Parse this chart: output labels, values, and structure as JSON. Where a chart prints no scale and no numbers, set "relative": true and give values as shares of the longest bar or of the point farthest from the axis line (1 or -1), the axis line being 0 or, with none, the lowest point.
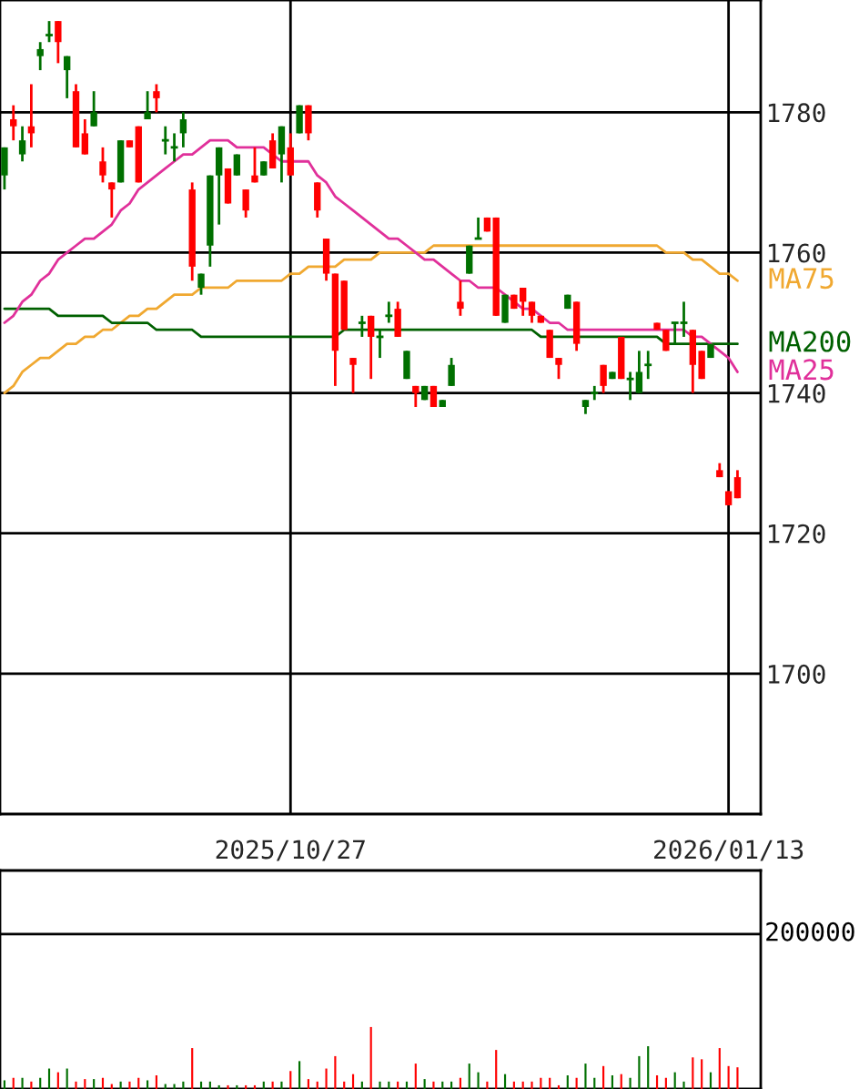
{
  "chart_data": [
    {
      "type": "candlestick",
      "categories": [
        null,
        null,
        null,
        null,
        null,
        null,
        null,
        null,
        null,
        null,
        null,
        null,
        null,
        null,
        null,
        null,
        null,
        null,
        null,
        null,
        null,
        null,
        null,
        null,
        null,
        null,
        null,
        null,
        null,
        null,
        null,
        null,
        "2025/10/27",
        null,
        null,
        null,
        null,
        null,
        null,
        null,
        null,
        null,
        null,
        null,
        null,
        null,
        null,
        null,
        null,
        null,
        null,
        null,
        null,
        null,
        null,
        null,
        null,
        null,
        null,
        null,
        null,
        null,
        null,
        null,
        null,
        null,
        null,
        null,
        null,
        null,
        null,
        null,
        null,
        null,
        null,
        null,
        null,
        null,
        null,
        null,
        null,
        "2026/01/13",
        null
      ],
      "ohlc": [
        [
          1775,
          1775,
          1769,
          1771
        ],
        [
          1778,
          1781,
          1776,
          1779
        ],
        [
          1776,
          1778,
          1773,
          1774
        ],
        [
          1777,
          1784,
          1775,
          1778
        ],
        [
          1789,
          1790,
          1786,
          1788
        ],
        [
          1791,
          1793,
          1790,
          1791
        ],
        [
          1790,
          1793,
          1787,
          1793
        ],
        [
          1788,
          1788,
          1782,
          1786
        ],
        [
          1775,
          1784,
          1775,
          1783
        ],
        [
          1774,
          1779,
          1774,
          1777
        ],
        [
          1780,
          1783,
          1778,
          1778
        ],
        [
          1771,
          1775,
          1770,
          1773
        ],
        [
          1769,
          1770,
          1765,
          1770
        ],
        [
          1776,
          1776,
          1770,
          1770
        ],
        [
          1775,
          1776,
          1775,
          1776
        ],
        [
          1770,
          1778,
          1770,
          1778
        ],
        [
          1780,
          1783,
          1779,
          1779
        ],
        [
          1782,
          1784,
          1780,
          1783
        ],
        [
          1776,
          1778,
          1774,
          1776
        ],
        [
          1775,
          1777,
          1773,
          1775
        ],
        [
          1779,
          1780,
          1775,
          1777
        ],
        [
          1758,
          1770,
          1756,
          1769
        ],
        [
          1757,
          1757,
          1754,
          1755
        ],
        [
          1771,
          1771,
          1758,
          1761
        ],
        [
          1775,
          1775,
          1764,
          1771
        ],
        [
          1767,
          1772,
          1767,
          1772
        ],
        [
          1774,
          1774,
          1771,
          1771
        ],
        [
          1766,
          1769,
          1765,
          1769
        ],
        [
          1770,
          1775,
          1770,
          1771
        ],
        [
          1773,
          1773,
          1771,
          1771
        ],
        [
          1772,
          1777,
          1772,
          1776
        ],
        [
          1778,
          1778,
          1770,
          1774
        ],
        [
          1771,
          1777,
          1771,
          1775
        ],
        [
          1781,
          1781,
          1777,
          1777
        ],
        [
          1777,
          1781,
          1776,
          1781
        ],
        [
          1766,
          1770,
          1765,
          1770
        ],
        [
          1757,
          1762,
          1756,
          1762
        ],
        [
          1746,
          1757,
          1741,
          1757
        ],
        [
          1749,
          1756,
          1749,
          1756
        ],
        [
          1744,
          1745,
          1740,
          1745
        ],
        [
          1750,
          1751,
          1748,
          1750
        ],
        [
          1748,
          1751,
          1742,
          1751
        ],
        [
          1748,
          1749,
          1745,
          1748
        ],
        [
          1751,
          1753,
          1750,
          1751
        ],
        [
          1748,
          1753,
          1748,
          1752
        ],
        [
          1746,
          1746,
          1742,
          1742
        ],
        [
          1740,
          1741,
          1738,
          1741
        ],
        [
          1741,
          1741,
          1739,
          1739
        ],
        [
          1738,
          1741,
          1738,
          1741
        ],
        [
          1739,
          1739,
          1738,
          1738
        ],
        [
          1744,
          1745,
          1741,
          1741
        ],
        [
          1752,
          1756,
          1751,
          1753
        ],
        [
          1761,
          1761,
          1757,
          1757
        ],
        [
          1762,
          1765,
          1762,
          1762
        ],
        [
          1763,
          1765,
          1763,
          1765
        ],
        [
          1751,
          1765,
          1751,
          1765
        ],
        [
          1754,
          1754,
          1750,
          1750
        ],
        [
          1752,
          1754,
          1752,
          1754
        ],
        [
          1753,
          1755,
          1751,
          1755
        ],
        [
          1751,
          1753,
          1750,
          1753
        ],
        [
          1750,
          1751,
          1750,
          1751
        ],
        [
          1745,
          1749,
          1745,
          1749
        ],
        [
          1744,
          1745,
          1742,
          1745
        ],
        [
          1754,
          1754,
          1752,
          1752
        ],
        [
          1747,
          1753,
          1746,
          1753
        ],
        [
          1739,
          1739,
          1737,
          1738
        ],
        [
          1740,
          1741,
          1739,
          1740
        ],
        [
          1741,
          1744,
          1740,
          1744
        ],
        [
          1743,
          1743,
          1742,
          1742
        ],
        [
          1742,
          1748,
          1742,
          1748
        ],
        [
          1742,
          1743,
          1739,
          1742
        ],
        [
          1743,
          1746,
          1740,
          1740
        ],
        [
          1744,
          1746,
          1742,
          1744
        ],
        [
          1749,
          1750,
          1749,
          1750
        ],
        [
          1746,
          1749,
          1746,
          1749
        ],
        [
          1750,
          1750,
          1747,
          1750
        ],
        [
          1750,
          1753,
          1748,
          1750
        ],
        [
          1744,
          1749,
          1740,
          1749
        ],
        [
          1742,
          1746,
          1742,
          1746
        ],
        [
          1747,
          1747,
          1745,
          1745
        ],
        [
          1728,
          1730,
          1728,
          1729
        ],
        [
          1724,
          1726,
          1724,
          1726
        ],
        [
          1725,
          1729,
          1725,
          1728
        ]
      ],
      "colors": [
        "#007000",
        "#ff0000",
        "#007000",
        "#ff0000",
        "#007000",
        "#007000",
        "#ff0000",
        "#007000",
        "#ff0000",
        "#ff0000",
        "#007000",
        "#ff0000",
        "#ff0000",
        "#007000",
        "#ff0000",
        "#ff0000",
        "#007000",
        "#ff0000",
        "#007000",
        "#007000",
        "#007000",
        "#ff0000",
        "#007000",
        "#007000",
        "#007000",
        "#ff0000",
        "#007000",
        "#ff0000",
        "#ff0000",
        "#007000",
        "#ff0000",
        "#007000",
        "#ff0000",
        "#007000",
        "#ff0000",
        "#ff0000",
        "#ff0000",
        "#ff0000",
        "#ff0000",
        "#ff0000",
        "#007000",
        "#ff0000",
        "#007000",
        "#007000",
        "#ff0000",
        "#007000",
        "#ff0000",
        "#007000",
        "#ff0000",
        "#007000",
        "#007000",
        "#ff0000",
        "#007000",
        "#007000",
        "#ff0000",
        "#ff0000",
        "#007000",
        "#ff0000",
        "#ff0000",
        "#ff0000",
        "#ff0000",
        "#ff0000",
        "#ff0000",
        "#007000",
        "#ff0000",
        "#007000",
        "#007000",
        "#ff0000",
        "#007000",
        "#ff0000",
        "#007000",
        "#007000",
        "#007000",
        "#ff0000",
        "#ff0000",
        "#007000",
        "#007000",
        "#ff0000",
        "#ff0000",
        "#007000",
        "#ff0000",
        "#ff0000",
        "#ff0000"
      ],
      "series": [
        {
          "name": "MA75",
          "type": "line",
          "color": "#f0a830",
          "values": [
            1740,
            1741,
            1743,
            1744,
            1745,
            1745,
            1746,
            1747,
            1747,
            1748,
            1748,
            1749,
            1749,
            1750,
            1751,
            1751,
            1752,
            1752,
            1753,
            1754,
            1754,
            1754,
            1755,
            1755,
            1755,
            1755,
            1756,
            1756,
            1756,
            1756,
            1756,
            1756,
            1757,
            1757,
            1758,
            1758,
            1758,
            1758,
            1759,
            1759,
            1759,
            1759,
            1760,
            1760,
            1760,
            1760,
            1760,
            1760,
            1761,
            1761,
            1761,
            1761,
            1761,
            1761,
            1761,
            1761,
            1761,
            1761,
            1761,
            1761,
            1761,
            1761,
            1761,
            1761,
            1761,
            1761,
            1761,
            1761,
            1761,
            1761,
            1761,
            1761,
            1761,
            1761,
            1760,
            1760,
            1760,
            1759,
            1759,
            1758,
            1757,
            1757,
            1756
          ]
        },
        {
          "name": "MA200",
          "type": "line",
          "color": "#006000",
          "values": [
            1752,
            1752,
            1752,
            1752,
            1752,
            1752,
            1751,
            1751,
            1751,
            1751,
            1751,
            1751,
            1750,
            1750,
            1750,
            1750,
            1750,
            1749,
            1749,
            1749,
            1749,
            1749,
            1748,
            1748,
            1748,
            1748,
            1748,
            1748,
            1748,
            1748,
            1748,
            1748,
            1748,
            1748,
            1748,
            1748,
            1748,
            1748,
            1749,
            1749,
            1749,
            1749,
            1749,
            1749,
            1749,
            1749,
            1749,
            1749,
            1749,
            1749,
            1749,
            1749,
            1749,
            1749,
            1749,
            1749,
            1749,
            1749,
            1749,
            1749,
            1748,
            1748,
            1748,
            1748,
            1748,
            1748,
            1748,
            1748,
            1748,
            1748,
            1748,
            1748,
            1748,
            1748,
            1747,
            1747,
            1747,
            1747,
            1747,
            1747,
            1747,
            1747,
            1747
          ]
        },
        {
          "name": "MA25",
          "type": "line",
          "color": "#e0309a",
          "values": [
            1750,
            1751,
            1753,
            1754,
            1756,
            1757,
            1759,
            1760,
            1761,
            1762,
            1762,
            1763,
            1764,
            1766,
            1767,
            1769,
            1770,
            1771,
            1772,
            1773,
            1774,
            1774,
            1775,
            1776,
            1776,
            1776,
            1775,
            1775,
            1775,
            1775,
            1774,
            1773,
            1773,
            1773,
            1773,
            1771,
            1770,
            1768,
            1767,
            1766,
            1765,
            1764,
            1763,
            1762,
            1762,
            1761,
            1760,
            1759,
            1759,
            1758,
            1757,
            1756,
            1756,
            1755,
            1755,
            1755,
            1754,
            1753,
            1752,
            1752,
            1751,
            1750,
            1750,
            1749,
            1749,
            1749,
            1749,
            1749,
            1749,
            1749,
            1749,
            1749,
            1749,
            1749,
            1749,
            1749,
            1749,
            1748,
            1748,
            1747,
            1746,
            1745,
            1743
          ]
        }
      ],
      "ylim": [
        1680,
        1796
      ],
      "yticks": [
        1700,
        1720,
        1740,
        1760,
        1780
      ],
      "grid": true
    },
    {
      "type": "bar",
      "categories": [
        null,
        null,
        null,
        null,
        null,
        null,
        null,
        null,
        null,
        null,
        null,
        null,
        null,
        null,
        null,
        null,
        null,
        null,
        null,
        null,
        null,
        null,
        null,
        null,
        null,
        null,
        null,
        null,
        null,
        null,
        null,
        null,
        null,
        null,
        null,
        null,
        null,
        null,
        null,
        null,
        null,
        null,
        null,
        null,
        null,
        null,
        null,
        null,
        null,
        null,
        null,
        null,
        null,
        null,
        null,
        null,
        null,
        null,
        null,
        null,
        null,
        null,
        null,
        null,
        null,
        null,
        null,
        null,
        null,
        null,
        null,
        null,
        null,
        null,
        null,
        null,
        null,
        null,
        null,
        null,
        null,
        null,
        null
      ],
      "values": [
        0.14,
        0.18,
        0.18,
        0.12,
        0.18,
        0.33,
        0.27,
        0.33,
        0.12,
        0.16,
        0.16,
        0.18,
        0.08,
        0.12,
        0.12,
        0.18,
        0.14,
        0.22,
        0.08,
        0.08,
        0.12,
        0.66,
        0.12,
        0.12,
        0.06,
        0.06,
        0.06,
        0.06,
        0.06,
        0.12,
        0.12,
        0.12,
        0.29,
        0.45,
        0.16,
        0.12,
        0.33,
        0.53,
        0.12,
        0.24,
        0.12,
        1,
        0.12,
        0.12,
        0.12,
        0.12,
        0.41,
        0.16,
        0.12,
        0.12,
        0.12,
        0.18,
        0.41,
        0.27,
        0.12,
        0.63,
        0.24,
        0.12,
        0.12,
        0.12,
        0.18,
        0.18,
        0.06,
        0.22,
        0.18,
        0.41,
        0.18,
        0.37,
        0.22,
        0.24,
        0.18,
        0.53,
        0.69,
        0.22,
        0.18,
        0.27,
        0.12,
        0.51,
        0.48,
        0.27,
        0.66,
        0.37,
        0.35
      ],
      "colors": [
        "#007000",
        "#ff0000",
        "#007000",
        "#ff0000",
        "#007000",
        "#007000",
        "#ff0000",
        "#007000",
        "#ff0000",
        "#ff0000",
        "#007000",
        "#ff0000",
        "#ff0000",
        "#007000",
        "#ff0000",
        "#ff0000",
        "#007000",
        "#ff0000",
        "#007000",
        "#007000",
        "#007000",
        "#ff0000",
        "#007000",
        "#007000",
        "#007000",
        "#ff0000",
        "#007000",
        "#ff0000",
        "#ff0000",
        "#007000",
        "#ff0000",
        "#007000",
        "#ff0000",
        "#007000",
        "#ff0000",
        "#ff0000",
        "#ff0000",
        "#ff0000",
        "#ff0000",
        "#ff0000",
        "#007000",
        "#ff0000",
        "#007000",
        "#007000",
        "#ff0000",
        "#007000",
        "#ff0000",
        "#007000",
        "#ff0000",
        "#007000",
        "#007000",
        "#ff0000",
        "#007000",
        "#007000",
        "#ff0000",
        "#ff0000",
        "#007000",
        "#ff0000",
        "#ff0000",
        "#ff0000",
        "#ff0000",
        "#ff0000",
        "#ff0000",
        "#007000",
        "#ff0000",
        "#007000",
        "#007000",
        "#ff0000",
        "#007000",
        "#ff0000",
        "#007000",
        "#007000",
        "#007000",
        "#ff0000",
        "#ff0000",
        "#007000",
        "#007000",
        "#ff0000",
        "#ff0000",
        "#007000",
        "#ff0000",
        "#ff0000",
        "#ff0000"
      ],
      "relative": true,
      "ref_lines": [
        {
          "axis": "y",
          "value": 2.5,
          "color": "#000000"
        }
      ],
      "annotations": [
        "200000"
      ]
    }
  ]
}
